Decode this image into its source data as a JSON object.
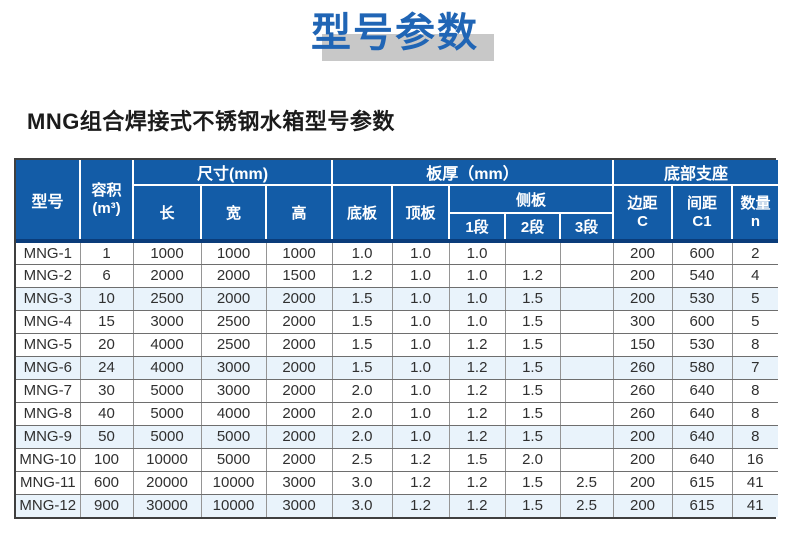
{
  "title": {
    "text": "型号参数"
  },
  "subtitle": {
    "text": "MNG组合焊接式不锈钢水箱型号参数"
  },
  "colors": {
    "title_blue": "#2065b5",
    "title_shadow_gray": "#c8c8c8",
    "header_blue": "#135ca7",
    "header_bottom_line": "#0a3c7a",
    "alt_row_blue": "#e9f3fb",
    "outer_border": "#3f3f3f"
  },
  "table": {
    "header": {
      "model": "型号",
      "volume_l1": "容积",
      "volume_l2": "(m³)",
      "dim_group": "尺寸(mm)",
      "thickness_group": "板厚（mm）",
      "support_group": "底部支座",
      "length": "长",
      "width": "宽",
      "height": "高",
      "bottom_plate": "底板",
      "top_plate": "顶板",
      "side_plate": "侧板",
      "seg1": "1段",
      "seg2": "2段",
      "seg3": "3段",
      "edge_l1": "边距",
      "edge_l2": "C",
      "spacing_l1": "间距",
      "spacing_l2": "C1",
      "qty_l1": "数量",
      "qty_l2": "n"
    },
    "column_order": [
      "model",
      "volume",
      "length",
      "width",
      "height",
      "bottom",
      "top",
      "seg1",
      "seg2",
      "seg3",
      "edge_c",
      "spacing_c1",
      "qty"
    ],
    "rows": [
      {
        "model": "MNG-1",
        "volume": "1",
        "length": "1000",
        "width": "1000",
        "height": "1000",
        "bottom": "1.0",
        "top": "1.0",
        "seg1": "1.0",
        "seg2": "",
        "seg3": "",
        "edge_c": "200",
        "spacing_c1": "600",
        "qty": "2"
      },
      {
        "model": "MNG-2",
        "volume": "6",
        "length": "2000",
        "width": "2000",
        "height": "1500",
        "bottom": "1.2",
        "top": "1.0",
        "seg1": "1.0",
        "seg2": "1.2",
        "seg3": "",
        "edge_c": "200",
        "spacing_c1": "540",
        "qty": "4"
      },
      {
        "model": "MNG-3",
        "volume": "10",
        "length": "2500",
        "width": "2000",
        "height": "2000",
        "bottom": "1.5",
        "top": "1.0",
        "seg1": "1.0",
        "seg2": "1.5",
        "seg3": "",
        "edge_c": "200",
        "spacing_c1": "530",
        "qty": "5"
      },
      {
        "model": "MNG-4",
        "volume": "15",
        "length": "3000",
        "width": "2500",
        "height": "2000",
        "bottom": "1.5",
        "top": "1.0",
        "seg1": "1.0",
        "seg2": "1.5",
        "seg3": "",
        "edge_c": "300",
        "spacing_c1": "600",
        "qty": "5"
      },
      {
        "model": "MNG-5",
        "volume": "20",
        "length": "4000",
        "width": "2500",
        "height": "2000",
        "bottom": "1.5",
        "top": "1.0",
        "seg1": "1.2",
        "seg2": "1.5",
        "seg3": "",
        "edge_c": "150",
        "spacing_c1": "530",
        "qty": "8"
      },
      {
        "model": "MNG-6",
        "volume": "24",
        "length": "4000",
        "width": "3000",
        "height": "2000",
        "bottom": "1.5",
        "top": "1.0",
        "seg1": "1.2",
        "seg2": "1.5",
        "seg3": "",
        "edge_c": "260",
        "spacing_c1": "580",
        "qty": "7"
      },
      {
        "model": "MNG-7",
        "volume": "30",
        "length": "5000",
        "width": "3000",
        "height": "2000",
        "bottom": "2.0",
        "top": "1.0",
        "seg1": "1.2",
        "seg2": "1.5",
        "seg3": "",
        "edge_c": "260",
        "spacing_c1": "640",
        "qty": "8"
      },
      {
        "model": "MNG-8",
        "volume": "40",
        "length": "5000",
        "width": "4000",
        "height": "2000",
        "bottom": "2.0",
        "top": "1.0",
        "seg1": "1.2",
        "seg2": "1.5",
        "seg3": "",
        "edge_c": "260",
        "spacing_c1": "640",
        "qty": "8"
      },
      {
        "model": "MNG-9",
        "volume": "50",
        "length": "5000",
        "width": "5000",
        "height": "2000",
        "bottom": "2.0",
        "top": "1.0",
        "seg1": "1.2",
        "seg2": "1.5",
        "seg3": "",
        "edge_c": "200",
        "spacing_c1": "640",
        "qty": "8"
      },
      {
        "model": "MNG-10",
        "volume": "100",
        "length": "10000",
        "width": "5000",
        "height": "2000",
        "bottom": "2.5",
        "top": "1.2",
        "seg1": "1.5",
        "seg2": "2.0",
        "seg3": "",
        "edge_c": "200",
        "spacing_c1": "640",
        "qty": "16"
      },
      {
        "model": "MNG-11",
        "volume": "600",
        "length": "20000",
        "width": "10000",
        "height": "3000",
        "bottom": "3.0",
        "top": "1.2",
        "seg1": "1.2",
        "seg2": "1.5",
        "seg3": "2.5",
        "edge_c": "200",
        "spacing_c1": "615",
        "qty": "41"
      },
      {
        "model": "MNG-12",
        "volume": "900",
        "length": "30000",
        "width": "10000",
        "height": "3000",
        "bottom": "3.0",
        "top": "1.2",
        "seg1": "1.2",
        "seg2": "1.5",
        "seg3": "2.5",
        "edge_c": "200",
        "spacing_c1": "615",
        "qty": "41"
      }
    ]
  }
}
